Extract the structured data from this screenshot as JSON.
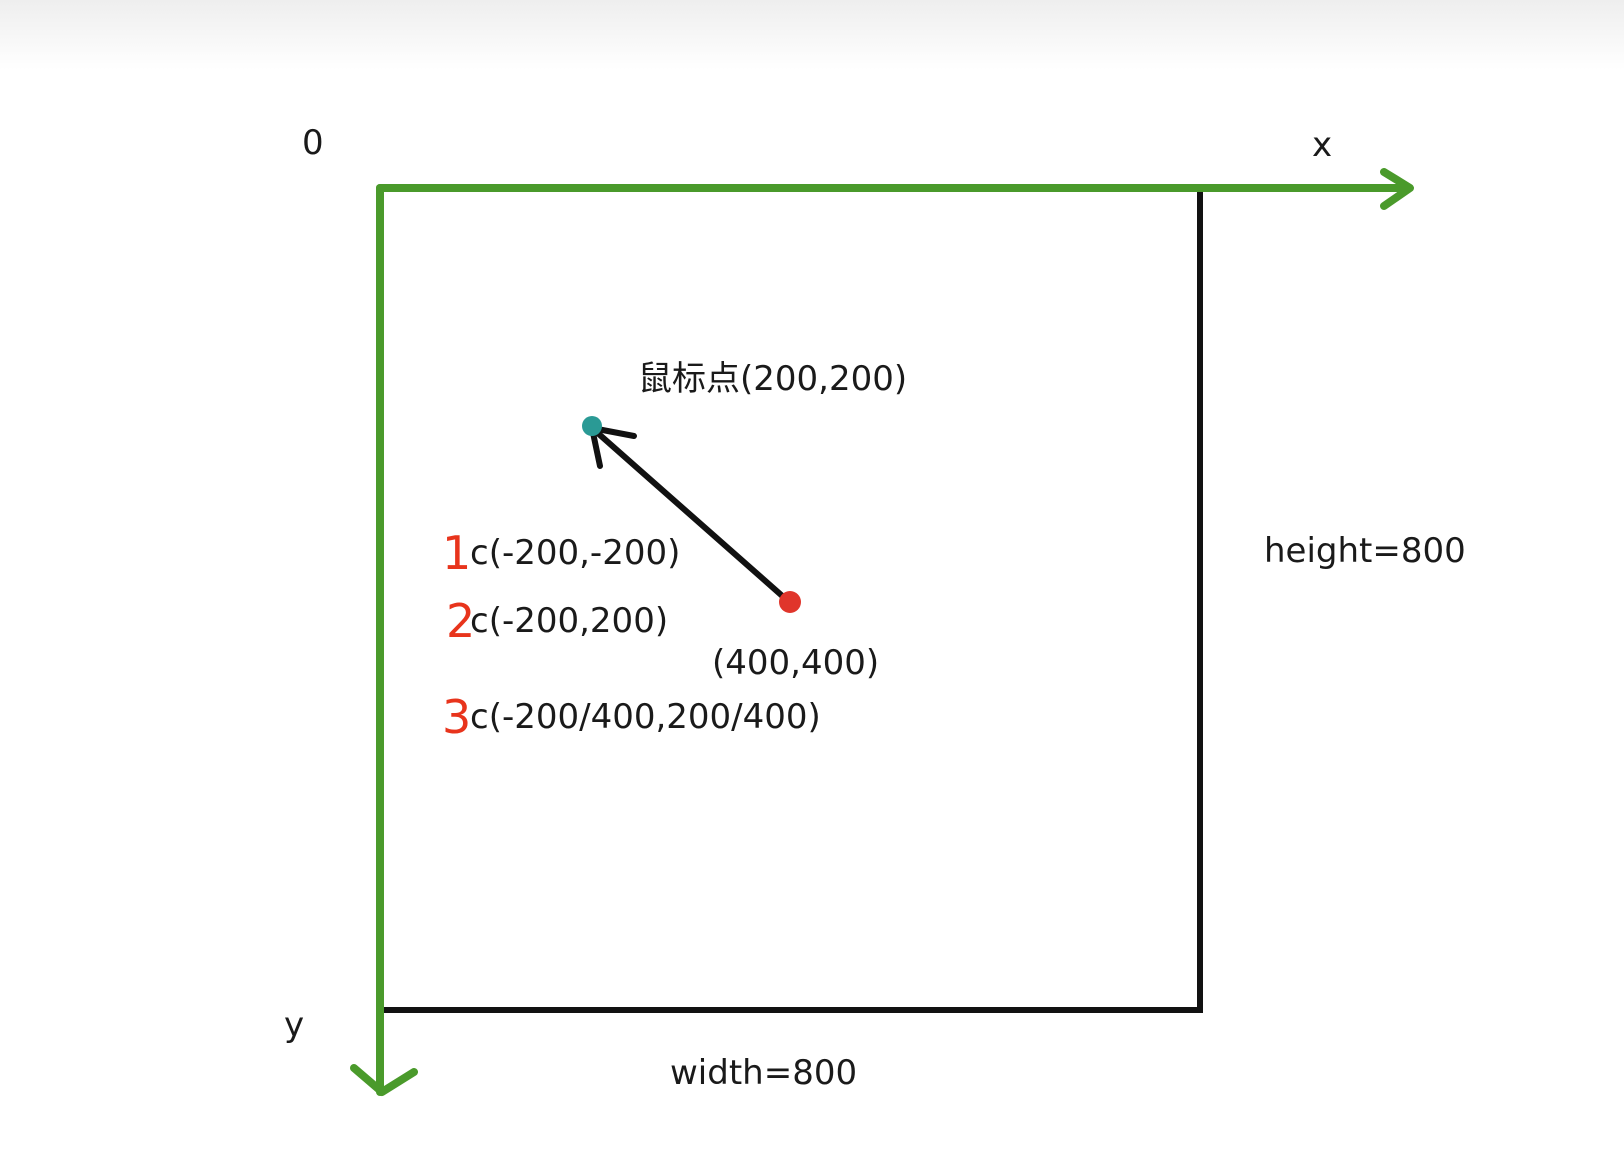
{
  "axes": {
    "origin_label": "0",
    "x_label": "x",
    "y_label": "y"
  },
  "canvas": {
    "width_label": "width=800",
    "height_label": "height=800"
  },
  "points": {
    "mouse_label": "鼠标点(200,200)",
    "center_label": "(400,400)"
  },
  "steps": [
    {
      "num": "1",
      "text": "c(-200,-200)"
    },
    {
      "num": "2",
      "text": "c(-200,200)"
    },
    {
      "num": "3",
      "text": "c(-200/400,200/400)"
    }
  ],
  "colors": {
    "axis": "#4a9a2b",
    "frame": "#111111",
    "mouse_point": "#2a9a95",
    "center_point": "#e0352b",
    "step_numbers": "#e8341c"
  }
}
